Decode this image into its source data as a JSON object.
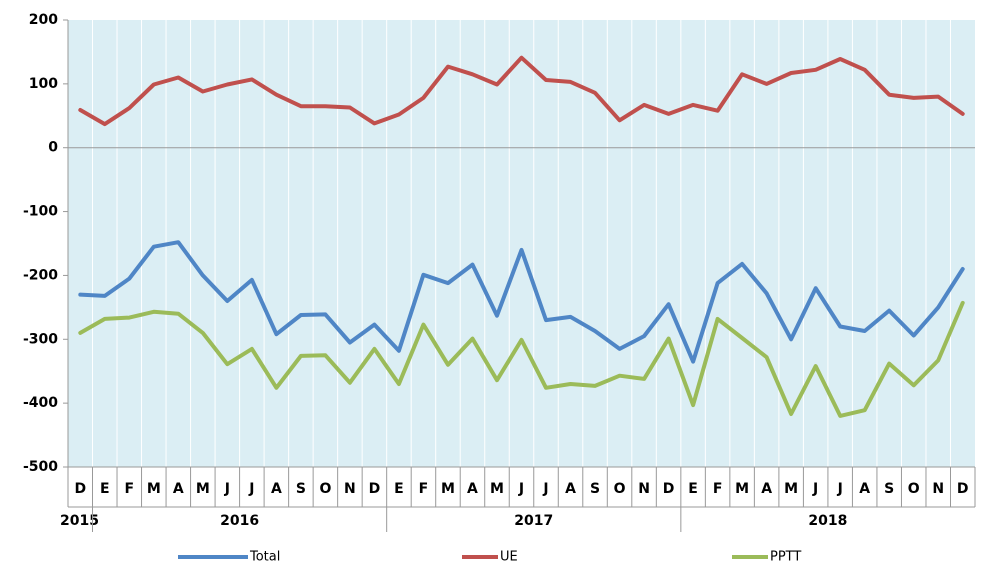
{
  "chart_data": {
    "type": "line",
    "categories": [
      "D",
      "E",
      "F",
      "M",
      "A",
      "M",
      "J",
      "J",
      "A",
      "S",
      "O",
      "N",
      "D",
      "E",
      "F",
      "M",
      "A",
      "M",
      "J",
      "J",
      "A",
      "S",
      "O",
      "N",
      "D",
      "E",
      "F",
      "M",
      "A",
      "M",
      "J",
      "J",
      "A",
      "S",
      "O",
      "N",
      "D"
    ],
    "years": [
      "2015",
      "2016",
      "2017",
      "2018"
    ],
    "year_spans": [
      1,
      12,
      12,
      12
    ],
    "series": [
      {
        "name": "Total",
        "color": "#4f86c6",
        "values": [
          -230,
          -232,
          -205,
          -155,
          -148,
          -200,
          -240,
          -207,
          -292,
          -262,
          -261,
          -305,
          -277,
          -318,
          -199,
          -212,
          -183,
          -263,
          -160,
          -270,
          -265,
          -287,
          -315,
          -295,
          -245,
          -335,
          -212,
          -182,
          -228,
          -300,
          -220,
          -280,
          -287,
          -255,
          -294,
          -250,
          -190
        ]
      },
      {
        "name": "UE",
        "color": "#c0504d",
        "values": [
          59,
          37,
          62,
          99,
          110,
          88,
          99,
          107,
          83,
          65,
          65,
          63,
          38,
          52,
          78,
          127,
          115,
          99,
          141,
          106,
          103,
          86,
          43,
          67,
          53,
          67,
          58,
          115,
          100,
          117,
          122,
          139,
          122,
          83,
          78,
          80,
          53
        ]
      },
      {
        "name": "PPTT",
        "color": "#9bbb59",
        "values": [
          -290,
          -268,
          -266,
          -257,
          -260,
          -290,
          -339,
          -315,
          -376,
          -326,
          -325,
          -368,
          -315,
          -370,
          -277,
          -340,
          -299,
          -364,
          -301,
          -376,
          -370,
          -373,
          -357,
          -362,
          -299,
          -403,
          -268,
          -298,
          -328,
          -417,
          -342,
          -420,
          -411,
          -338,
          -372,
          -333,
          -243
        ]
      }
    ],
    "ylim": [
      -500,
      200
    ],
    "yticks": [
      200,
      100,
      0,
      -100,
      -200,
      -300,
      -400,
      -500
    ],
    "legend": "bottom",
    "plot_background": "#dbeef4"
  }
}
